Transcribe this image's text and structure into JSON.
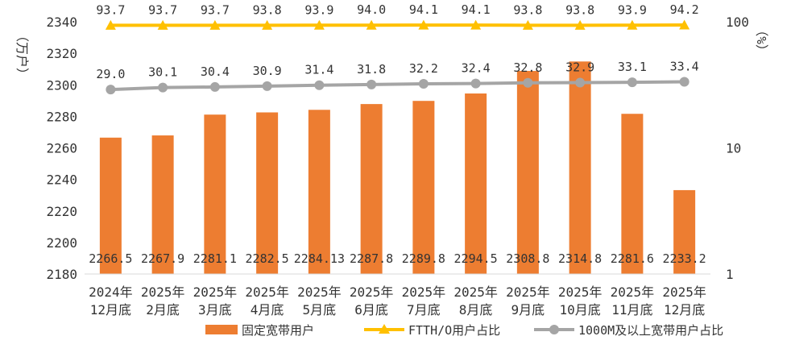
{
  "chart_data": {
    "type": "bar",
    "title": "",
    "y_left": {
      "label": "（万户）",
      "ylim": [
        2180,
        2340
      ],
      "ticks": [
        "2180",
        "2200",
        "2220",
        "2240",
        "2260",
        "2280",
        "2300",
        "2320",
        "2340"
      ],
      "tick_values": [
        2180,
        2200,
        2220,
        2240,
        2260,
        2280,
        2300,
        2320,
        2340
      ]
    },
    "y_right": {
      "label": "（%）",
      "scale": "log",
      "ylim": [
        1,
        100
      ],
      "ticks": [
        "1",
        "10",
        "100"
      ],
      "tick_values": [
        1,
        10,
        100
      ]
    },
    "categories": [
      [
        "2024年",
        "12月底"
      ],
      [
        "2025年",
        "2月底"
      ],
      [
        "2025年",
        "3月底"
      ],
      [
        "2025年",
        "4月底"
      ],
      [
        "2025年",
        "5月底"
      ],
      [
        "2025年",
        "6月底"
      ],
      [
        "2025年",
        "7月底"
      ],
      [
        "2025年",
        "8月底"
      ],
      [
        "2025年",
        "9月底"
      ],
      [
        "2025年",
        "10月底"
      ],
      [
        "2025年",
        "11月底"
      ],
      [
        "2025年",
        "12月底"
      ]
    ],
    "series": [
      {
        "name": "固定宽带用户",
        "type": "bar",
        "axis": "left",
        "color": "#ED7D31",
        "values": [
          2266.5,
          2267.9,
          2281.1,
          2282.5,
          2284.13,
          2287.8,
          2289.8,
          2294.5,
          2308.8,
          2314.8,
          2281.6,
          2233.2
        ],
        "labels": [
          "2266.5",
          "2267.9",
          "2281.1",
          "2282.5",
          "2284.13",
          "2287.8",
          "2289.8",
          "2294.5",
          "2308.8",
          "2314.8",
          "2281.6",
          "2233.2"
        ]
      },
      {
        "name": "FTTH/O用户占比",
        "type": "line",
        "axis": "right",
        "color": "#FFC000",
        "marker": "triangle",
        "values": [
          93.7,
          93.7,
          93.7,
          93.8,
          93.9,
          94.0,
          94.1,
          94.1,
          93.8,
          93.8,
          93.9,
          94.2
        ],
        "labels": [
          "93.7",
          "93.7",
          "93.7",
          "93.8",
          "93.9",
          "94.0",
          "94.1",
          "94.1",
          "93.8",
          "93.8",
          "93.9",
          "94.2"
        ]
      },
      {
        "name": "1000M及以上宽带用户占比",
        "type": "line",
        "axis": "right",
        "color": "#A5A5A5",
        "marker": "circle",
        "values": [
          29.0,
          30.1,
          30.4,
          30.9,
          31.4,
          31.8,
          32.2,
          32.4,
          32.8,
          32.9,
          33.1,
          33.4
        ],
        "labels": [
          "29.0",
          "30.1",
          "30.4",
          "30.9",
          "31.4",
          "31.8",
          "32.2",
          "32.4",
          "32.8",
          "32.9",
          "33.1",
          "33.4"
        ]
      }
    ],
    "grid": false,
    "legend": "bottom"
  }
}
